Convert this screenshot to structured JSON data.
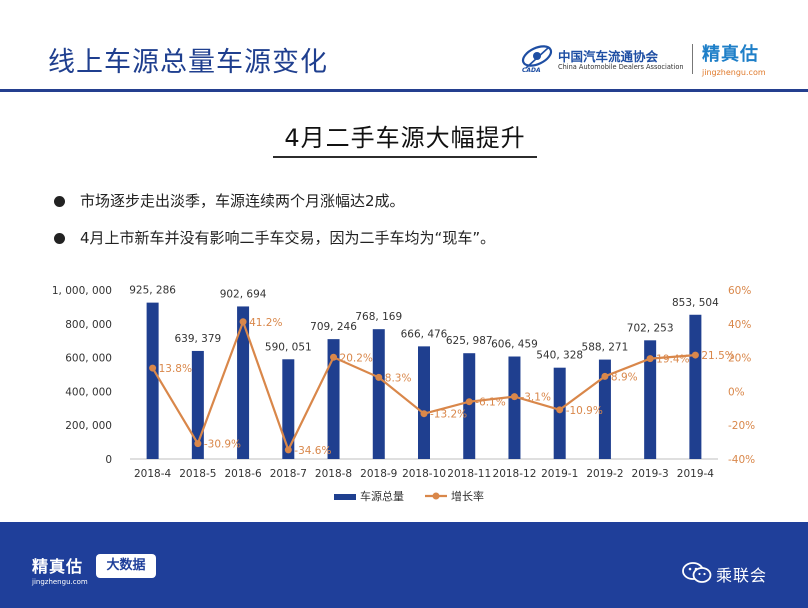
{
  "header": {
    "title": "线上车源总量车源变化",
    "caada_name_cn": "中国汽车流通协会",
    "caada_name_en": "China Automobile Dealers Association",
    "caada_abbr": "CADA",
    "jzg_name": "精真估",
    "jzg_url": "jingzhengu.com"
  },
  "subtitle": "4月二手车源大幅提升",
  "bullets": [
    "市场逐步走出淡季，车源连续两个月涨幅达2成。",
    "4月上市新车并没有影响二手车交易，因为二手车均为“现车”。"
  ],
  "chart_data": {
    "type": "bar",
    "categories": [
      "2018-4",
      "2018-5",
      "2018-6",
      "2018-7",
      "2018-8",
      "2018-9",
      "2018-10",
      "2018-11",
      "2018-12",
      "2019-1",
      "2019-2",
      "2019-3",
      "2019-4"
    ],
    "series": [
      {
        "name": "车源总量",
        "type": "bar",
        "axis": "left",
        "color": "#1f3f8f",
        "values": [
          925286,
          639379,
          902694,
          590051,
          709246,
          768169,
          666476,
          625987,
          606459,
          540328,
          588271,
          702253,
          853504
        ],
        "labels": [
          "925, 286",
          "639, 379",
          "902, 694",
          "590, 051",
          "709, 246",
          "768, 169",
          "666, 476",
          "625, 987",
          "606, 459",
          "540, 328",
          "588, 271",
          "702, 253",
          "853, 504"
        ]
      },
      {
        "name": "增长率",
        "type": "line",
        "axis": "right",
        "color": "#d9874a",
        "values": [
          13.8,
          -30.9,
          41.2,
          -34.6,
          20.2,
          8.3,
          -13.2,
          -6.1,
          -3.1,
          -10.9,
          8.9,
          19.4,
          21.5
        ],
        "labels": [
          "13.8%",
          "-30.9%",
          "41.2%",
          "-34.6%",
          "20.2%",
          "8.3%",
          "-13.2%",
          "-6.1%",
          "-3.1%",
          "-10.9%",
          "8.9%",
          "19.4%",
          "21.5%"
        ]
      }
    ],
    "y_left": {
      "min": 0,
      "max": 1000000,
      "ticks": [
        "0",
        "200, 000",
        "400, 000",
        "600, 000",
        "800, 000",
        "1, 000, 000"
      ]
    },
    "y_right": {
      "min": -40,
      "max": 60,
      "ticks": [
        "-40%",
        "-20%",
        "0%",
        "20%",
        "40%",
        "60%"
      ]
    },
    "legend_position": "bottom",
    "grid": false
  },
  "footer": {
    "jzg_name": "精真估",
    "jzg_url": "jingzhengu.com",
    "badge": "大数据",
    "wechat_name": "乘联会"
  }
}
